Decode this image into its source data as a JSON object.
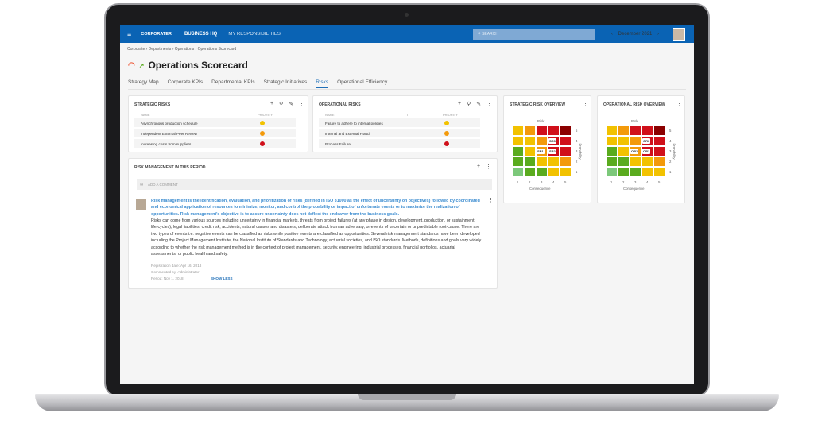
{
  "topbar": {
    "menu_icon": "hamburger-icon",
    "logo": "CORPORATER",
    "nav1": "BUSINESS HQ",
    "nav2": "MY RESPONSIBILITIES",
    "search_placeholder": "SEARCH",
    "prev": "‹",
    "date": "December 2021",
    "next": "›"
  },
  "breadcrumb": "Corporate  ›  Departments  ›  Operations  ›  Operations Scorecard",
  "page_title": "Operations Scorecard",
  "tabs": [
    "Strategy Map",
    "Corporate KPIs",
    "Departmental KPIs",
    "Strategic Initiatives",
    "Risks",
    "Operational Efficiency"
  ],
  "active_tab": "Risks",
  "strategic_risks": {
    "title": "STRATEGIC RISKS",
    "col_name": "NAME",
    "col_priority": "PRIORITY",
    "rows": [
      {
        "name": "Asynchronous production schedule",
        "priority": "#f2c200"
      },
      {
        "name": "Independent External Peer Review",
        "priority": "#f39a0b"
      },
      {
        "name": "Increasing costs from suppliers",
        "priority": "#d0101a"
      }
    ]
  },
  "operational_risks": {
    "title": "OPERATIONAL RISKS",
    "col_name": "NAME",
    "col_i": "I",
    "col_priority": "PRIORITY",
    "rows": [
      {
        "name": "Failure to adhere to internal policies",
        "priority": "#f2c200"
      },
      {
        "name": "Internal and External Fraud",
        "priority": "#f39a0b"
      },
      {
        "name": "Process Failure",
        "priority": "#d0101a"
      }
    ]
  },
  "strategic_overview": {
    "title": "STRATEGIC RISK OVERVIEW",
    "top_label": "Risk",
    "x_label": "Consequence",
    "y_label": "Probability",
    "ticks": [
      "1",
      "2",
      "3",
      "4",
      "5"
    ],
    "markers": [
      {
        "label": "SR3",
        "c": 4,
        "p": 4
      },
      {
        "label": "SR1",
        "c": 3,
        "p": 3
      },
      {
        "label": "SR2",
        "c": 4,
        "p": 3
      }
    ]
  },
  "operational_overview": {
    "title": "OPERATIONAL RISK OVERVIEW",
    "top_label": "Risk",
    "x_label": "Consequence",
    "y_label": "Probability",
    "ticks": [
      "1",
      "2",
      "3",
      "4",
      "5"
    ],
    "markers": [
      {
        "label": "OR3",
        "c": 4,
        "p": 4
      },
      {
        "label": "OR1",
        "c": 3,
        "p": 3
      },
      {
        "label": "OR2",
        "c": 4,
        "p": 3
      }
    ]
  },
  "heatmap_colors": {
    "rows_top_to_bottom": [
      [
        "#f2c200",
        "#f39a0b",
        "#d0101a",
        "#d0101a",
        "#8b0000"
      ],
      [
        "#f2c200",
        "#f2c200",
        "#f39a0b",
        "#d0101a",
        "#d0101a"
      ],
      [
        "#5aab1e",
        "#f2c200",
        "#f39a0b",
        "#d0101a",
        "#d0101a"
      ],
      [
        "#5aab1e",
        "#5aab1e",
        "#f2c200",
        "#f2c200",
        "#f39a0b"
      ],
      [
        "#7cc87a",
        "#5aab1e",
        "#5aab1e",
        "#f2c200",
        "#f2c200"
      ]
    ]
  },
  "risk_management": {
    "title": "RISK MANAGEMENT IN THIS PERIOD",
    "add_comment": "ADD A COMMENT",
    "highlight": "Risk management is the identification, evaluation, and prioritization of risks (defined in ISO 31000 as the effect of uncertainty on objectives) followed by coordinated and economical application of resources to minimize, monitor, and control the probability or impact of unfortunate events or to maximize the realization of opportunities. Risk management's objective is to assure uncertainty does not deflect the endeavor from the business goals.",
    "body": "Risks can come from various sources including uncertainty in financial markets, threats from project failures (at any phase in design, development, production, or sustainment life-cycles), legal liabilities, credit risk, accidents, natural causes and disasters, deliberate attack from an adversary, or events of uncertain or unpredictable root-cause. There are two types of events i.e. negative events can be classified as risks while positive events are classified as opportunities. Several risk management standards have been developed including the Project Management Institute, the National Institute of Standards and Technology, actuarial societies, and ISO standards. Methods, definitions and goals vary widely according to whether the risk management method is in the context of project management, security, engineering, industrial processes, financial portfolios, actuarial assessments, or public health and safety.",
    "registration": "Registration date: Apr 16, 2018",
    "commented_by": "Commented by: Administrator",
    "period": "Period: Nov 1, 2018",
    "show_less": "SHOW LESS"
  }
}
